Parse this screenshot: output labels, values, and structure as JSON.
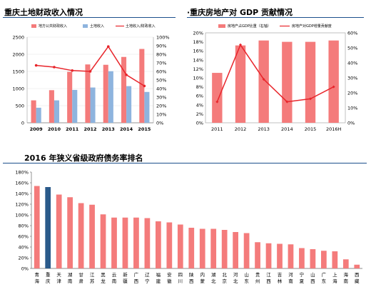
{
  "colors": {
    "bar_red": "#f47b7b",
    "bar_blue": "#8eb4de",
    "highlight": "#2a5a8a",
    "line_red": "#e8252b",
    "rule_blue": "#1c4f8c"
  },
  "chart_data": [
    {
      "id": "fiscal",
      "type": "bar",
      "title": "重庆土地财政收入情况",
      "categories": [
        "2009",
        "2010",
        "2011",
        "2012",
        "2013",
        "2014",
        "2015"
      ],
      "series": [
        {
          "name": "地方公共财政收入",
          "kind": "bar",
          "axis": "left",
          "color": "#f47b7b",
          "values": [
            655,
            952,
            1488,
            1703,
            1693,
            1922,
            2155
          ]
        },
        {
          "name": "土地收入",
          "kind": "bar",
          "axis": "left",
          "color": "#8eb4de",
          "values": [
            440,
            655,
            960,
            1030,
            1505,
            1070,
            900
          ]
        },
        {
          "name": "土地收入/财政收入",
          "kind": "line",
          "axis": "right",
          "color": "#e8252b",
          "values": [
            0.67,
            0.65,
            0.61,
            0.6,
            0.89,
            0.56,
            0.43
          ]
        }
      ],
      "ylim_left": [
        0,
        2500
      ],
      "yticks_left": [
        0,
        500,
        1000,
        1500,
        2000,
        2500
      ],
      "ylim_right": [
        0,
        1.0
      ],
      "yticks_right": [
        "0%",
        "10%",
        "20%",
        "30%",
        "40%",
        "50%",
        "60%",
        "70%",
        "80%",
        "90%",
        "100%"
      ],
      "legend": "top"
    },
    {
      "id": "gdp",
      "type": "bar",
      "title": "·重庆房地产对 GDP 贡献情况",
      "categories": [
        "2011",
        "2012",
        "2013",
        "2014",
        "2015",
        "2016H"
      ],
      "series": [
        {
          "name": "房地产占GDP比重（右轴）",
          "kind": "bar",
          "axis": "left",
          "color": "#f47b7b",
          "values": [
            0.111,
            0.172,
            0.183,
            0.18,
            0.18,
            0.183
          ]
        },
        {
          "name": "房地产对GDP增量贡献度",
          "kind": "line",
          "axis": "right",
          "color": "#e8252b",
          "values": [
            0.14,
            0.52,
            0.29,
            0.14,
            0.16,
            0.24
          ]
        }
      ],
      "ylim_left": [
        0,
        0.2
      ],
      "yticks_left": [
        "0%",
        "2%",
        "4%",
        "6%",
        "8%",
        "10%",
        "12%",
        "14%",
        "16%",
        "18%",
        "20%"
      ],
      "ylim_right": [
        0,
        0.6
      ],
      "yticks_right": [
        "0%",
        "10%",
        "20%",
        "30%",
        "40%",
        "50%",
        "60%"
      ],
      "legend": "top"
    },
    {
      "id": "debt",
      "type": "bar",
      "title": "2016 年狭义省级政府债务率排名",
      "categories": [
        "青海",
        "重庆",
        "天津",
        "湖南",
        "甘肃",
        "江苏",
        "黑龙江",
        "云南",
        "新疆",
        "广西",
        "辽宁",
        "福建",
        "安徽",
        "四川",
        "陕西",
        "内蒙古",
        "湖北",
        "北京",
        "河北",
        "山东",
        "贵州",
        "江西",
        "吉林",
        "河南",
        "宁夏",
        "山西",
        "广东",
        "上海",
        "海南",
        "西藏"
      ],
      "category_labels": [
        [
          "青",
          "海"
        ],
        [
          "重",
          "庆"
        ],
        [
          "天",
          "津"
        ],
        [
          "湖",
          "南"
        ],
        [
          "甘",
          "肃"
        ],
        [
          "江",
          "苏"
        ],
        [
          "黑",
          "龙"
        ],
        [
          "云",
          "南"
        ],
        [
          "新",
          "疆"
        ],
        [
          "广",
          "西"
        ],
        [
          "辽",
          "宁"
        ],
        [
          "福",
          "建"
        ],
        [
          "安",
          "徽"
        ],
        [
          "四",
          "川"
        ],
        [
          "陕",
          "西"
        ],
        [
          "内",
          "蒙"
        ],
        [
          "湖",
          "北"
        ],
        [
          "北",
          "京"
        ],
        [
          "河",
          "北"
        ],
        [
          "山",
          "东"
        ],
        [
          "贵",
          "州"
        ],
        [
          "江",
          "西"
        ],
        [
          "吉",
          "林"
        ],
        [
          "河",
          "南"
        ],
        [
          "宁",
          "夏"
        ],
        [
          "山",
          "西"
        ],
        [
          "广",
          "东"
        ],
        [
          "上",
          "海"
        ],
        [
          "海",
          "南"
        ],
        [
          "西",
          "藏"
        ]
      ],
      "values": [
        1.54,
        1.52,
        1.38,
        1.33,
        1.22,
        1.19,
        1.01,
        0.95,
        0.95,
        0.95,
        0.94,
        0.88,
        0.86,
        0.82,
        0.76,
        0.74,
        0.74,
        0.72,
        0.68,
        0.66,
        0.49,
        0.47,
        0.46,
        0.45,
        0.38,
        0.36,
        0.33,
        0.32,
        0.17,
        0.07
      ],
      "highlight_category": "重庆",
      "ylim": [
        0,
        1.8
      ],
      "yticks": [
        "0%",
        "20%",
        "40%",
        "60%",
        "80%",
        "100%",
        "120%",
        "140%",
        "160%",
        "180%"
      ],
      "legend": "none"
    }
  ]
}
